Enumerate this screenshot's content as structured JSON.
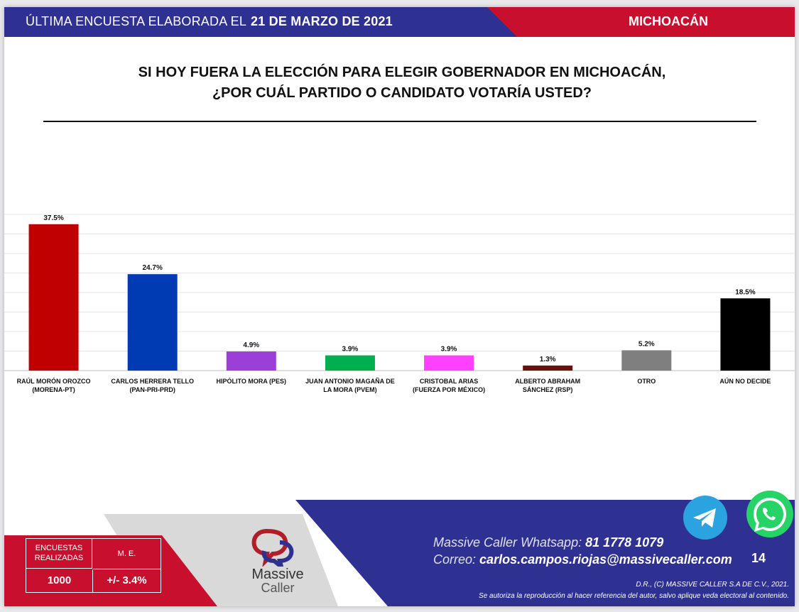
{
  "header": {
    "left_prefix": "ÚLTIMA ENCUESTA ELABORADA EL",
    "left_date": "21 DE MARZO DE 2021",
    "right": "MICHOACÁN",
    "colors": {
      "blue": "#2e3191",
      "red": "#c8102e"
    }
  },
  "question": {
    "line1": "SI HOY FUERA LA ELECCIÓN PARA ELEGIR GOBERNADOR EN MICHOACÁN,",
    "line2": "¿POR CUÁL PARTIDO O CANDIDATO VOTARÍA USTED?"
  },
  "chart_data": {
    "type": "bar",
    "categories": [
      [
        "RAÚL MORÓN OROZCO",
        "(MORENA-PT)"
      ],
      [
        "CARLOS HERRERA TELLO",
        "(PAN-PRI-PRD)"
      ],
      [
        "HIPÓLITO MORA (PES)"
      ],
      [
        "JUAN ANTONIO MAGAÑA DE",
        "LA MORA (PVEM)"
      ],
      [
        "CRISTOBAL ARIAS",
        "(FUERZA POR MÉXICO)"
      ],
      [
        "ALBERTO ABRAHAM",
        "SÁNCHEZ (RSP)"
      ],
      [
        "OTRO"
      ],
      [
        "AÚN NO DECIDE"
      ]
    ],
    "values": [
      37.5,
      24.7,
      4.9,
      3.9,
      3.9,
      1.3,
      5.2,
      18.5
    ],
    "value_labels": [
      "37.5%",
      "24.7%",
      "4.9%",
      "3.9%",
      "3.9%",
      "1.3%",
      "5.2%",
      "18.5%"
    ],
    "colors": [
      "#c00000",
      "#003bb3",
      "#9b3fd8",
      "#00b050",
      "#ff40ff",
      "#6b0f0f",
      "#7f7f7f",
      "#000000"
    ],
    "ylim": [
      0,
      40
    ],
    "grid": true,
    "legend": "none"
  },
  "footer": {
    "stats": {
      "label_encuestas_1": "ENCUESTAS",
      "label_encuestas_2": "REALIZADAS",
      "label_me": "M. E.",
      "value_encuestas": "1000",
      "value_me": "+/- 3.4%"
    },
    "logo": {
      "line1": "Massive",
      "line2": "Caller"
    },
    "contact": {
      "whatsapp_label": "Massive Caller Whatsapp:",
      "whatsapp_number": "81 1778 1079",
      "email_label": "Correo:",
      "email": "carlos.campos.riojas@massivecaller.com"
    },
    "page_number": "14",
    "legal_1": "D.R., (C) MASSIVE CALLER S.A DE C.V., 2021.",
    "legal_2": "Se autoriza la reproducción al hacer referencia del autor, salvo aplique veda electoral al contenido.",
    "icons": {
      "telegram": "telegram-icon",
      "whatsapp": "whatsapp-icon"
    }
  }
}
